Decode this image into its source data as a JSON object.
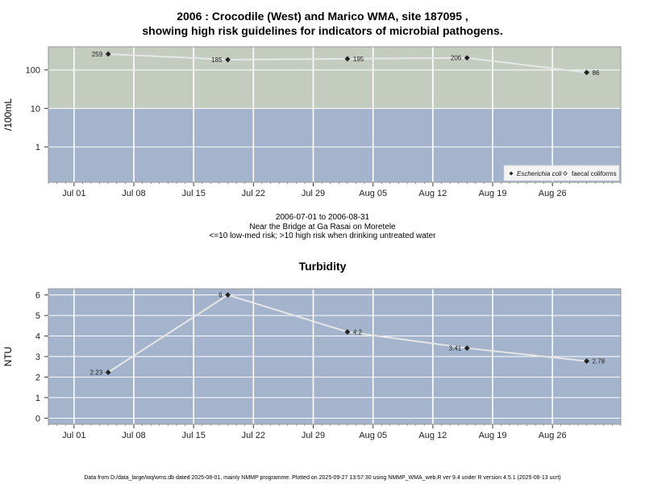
{
  "title_line1": "2006 : Crocodile (West) and Marico WMA, site 187095 ,",
  "title_line2": "showing high risk guidelines for indicators of microbial pathogens.",
  "subtitle_lines": [
    "2006-07-01 to 2006-08-31",
    "Near the Bridge at Ga Rasai on Moretele",
    "<=10 low-med risk; >10 high risk when drinking untreated water"
  ],
  "footer": "Data from D:/data_large/wq/wms.db dated 2025-08-01, mainly NMMP programme. Plotted on 2025-09-27 13:57:30 using NMMP_WMA_web.R ver 9.4 under R version 4.5.1 (2025-06-13 ucrt)",
  "colors": {
    "high_risk_band": "#c4ccc0",
    "low_risk_band": "#a3b4cc",
    "grid": "#ffffff",
    "line": "#e6e6e6",
    "point": "#222222"
  },
  "chart_data": [
    {
      "type": "line",
      "title": "",
      "ylabel": "/100mL",
      "y_scale": "log10",
      "ylim": [
        0.12,
        400
      ],
      "xlim": [
        "2006-06-28",
        "2006-09-03"
      ],
      "x_ticks": [
        "Jul 01",
        "Jul 08",
        "Jul 15",
        "Jul 22",
        "Jul 29",
        "Aug 05",
        "Aug 12",
        "Aug 19",
        "Aug 26"
      ],
      "x_tick_dates": [
        "2006-07-01",
        "2006-07-08",
        "2006-07-15",
        "2006-07-22",
        "2006-07-29",
        "2006-08-05",
        "2006-08-12",
        "2006-08-19",
        "2006-08-26"
      ],
      "y_ticks": [
        "1",
        "10",
        "100"
      ],
      "y_tick_values": [
        1,
        10,
        100
      ],
      "threshold": 10,
      "legend_position": "bottom-right",
      "legend": [
        "Escherichia coli",
        "faecal coliforms"
      ],
      "series": [
        {
          "name": "Escherichia coli",
          "x": [
            "2006-07-05",
            "2006-07-19",
            "2006-08-02",
            "2006-08-16",
            "2006-08-30"
          ],
          "y": [
            259,
            185,
            195,
            206,
            86
          ],
          "labels": [
            "259",
            "185",
            "195",
            "206",
            "86"
          ]
        }
      ]
    },
    {
      "type": "line",
      "title": "Turbidity",
      "ylabel": "NTU",
      "ylim": [
        -0.3,
        6.3
      ],
      "xlim": [
        "2006-06-28",
        "2006-09-03"
      ],
      "x_ticks": [
        "Jul 01",
        "Jul 08",
        "Jul 15",
        "Jul 22",
        "Jul 29",
        "Aug 05",
        "Aug 12",
        "Aug 19",
        "Aug 26"
      ],
      "x_tick_dates": [
        "2006-07-01",
        "2006-07-08",
        "2006-07-15",
        "2006-07-22",
        "2006-07-29",
        "2006-08-05",
        "2006-08-12",
        "2006-08-19",
        "2006-08-26"
      ],
      "y_ticks": [
        "0",
        "1",
        "2",
        "3",
        "4",
        "5",
        "6"
      ],
      "y_tick_values": [
        0,
        1,
        2,
        3,
        4,
        5,
        6
      ],
      "series": [
        {
          "name": "",
          "x": [
            "2006-07-05",
            "2006-07-19",
            "2006-08-02",
            "2006-08-16",
            "2006-08-30"
          ],
          "y": [
            2.23,
            6,
            4.2,
            3.41,
            2.78
          ],
          "labels": [
            "2.23",
            "6",
            "4.2",
            "3.41",
            "2.78"
          ]
        }
      ]
    }
  ]
}
